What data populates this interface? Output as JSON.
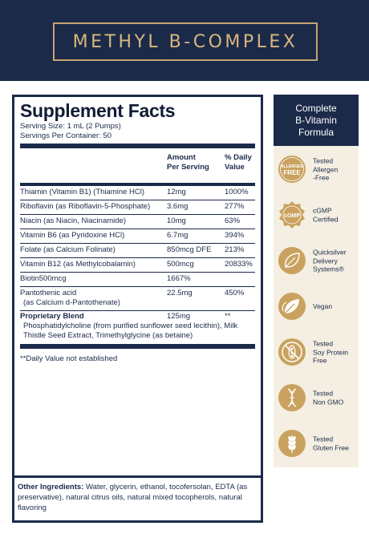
{
  "header": {
    "title": "METHYL B-COMPLEX"
  },
  "facts": {
    "title": "Supplement Facts",
    "serving_size": "Serving Size: 1 mL (2 Pumps)",
    "servings_per_container": "Servings Per Container: 50",
    "col_amount_line1": "Amount",
    "col_amount_line2": "Per Serving",
    "col_dv_line1": "% Daily",
    "col_dv_line2": "Value",
    "rows": [
      {
        "name": "Thiamin (Vitamin B1) (Thiamine HCl)",
        "amount": "12mg",
        "dv": "1000%"
      },
      {
        "name": "Riboflavin (as Riboflavin-5-Phosphate)",
        "amount": "3.6mg",
        "dv": "277%"
      },
      {
        "name": "Niacin (as Niacin, Niacinamide)",
        "amount": "10mg",
        "dv": "63%"
      },
      {
        "name": "Vitamin B6 (as Pyridoxine HCl)",
        "amount": "6.7mg",
        "dv": "394%"
      },
      {
        "name": "Folate  (as Calcium Folinate)",
        "amount": "850mcg DFE",
        "dv": "213%"
      },
      {
        "name": "Vitamin B12 (as Methylcobalamin)",
        "amount": "500mcg",
        "dv": "20833%"
      },
      {
        "name": "Biotin500mcg",
        "amount": "1667%",
        "dv": ""
      },
      {
        "name_line1": "Pantothenic acid",
        "name_line2": "(as Calcium d-Pantothenate)",
        "amount": "22.5mg",
        "dv": "450%"
      }
    ],
    "blend": {
      "name": "Proprietary Blend",
      "amount": "125mg",
      "dv": "**",
      "description": "Phosphatidylcholine (from purified sunflower seed lecithin), Milk Thistle Seed Extract, Trimethylglycine (as betaine)"
    },
    "footnote": "**Daily Value not established"
  },
  "other_ingredients": {
    "label": "Other Ingredients:",
    "text": " Water, glycerin, ethanol, tocofersolan, EDTA (as preservative), natural citrus oils, natural mixed tocopherols, natural flavoring"
  },
  "sidebar": {
    "heading_line1": "Complete",
    "heading_line2": "B-Vitamin",
    "heading_line3": "Formula",
    "badges": [
      {
        "icon": "allergen-free-icon",
        "icon_text_1": "ALLERGEN",
        "icon_text_2": "FREE",
        "line1": "Tested",
        "line2": "Allergen",
        "line3": "-Free"
      },
      {
        "icon": "cgmp-icon",
        "icon_text_1": "cGMP",
        "line1": "cGMP",
        "line2": "Certified"
      },
      {
        "icon": "delivery-leaf-icon",
        "line1": "Quicksilver",
        "line2": "Delivery",
        "line3": "Systems®"
      },
      {
        "icon": "vegan-leaf-icon",
        "line1": "Vegan"
      },
      {
        "icon": "no-soy-icon",
        "line1": "Tested",
        "line2": "Soy Protein",
        "line3": "Free"
      },
      {
        "icon": "non-gmo-dna-icon",
        "line1": "Tested",
        "line2": "Non GMO"
      },
      {
        "icon": "gluten-free-wheat-icon",
        "line1": "Tested",
        "line2": "Gluten Free"
      }
    ],
    "colors": {
      "badge_gold": "#c9a25f",
      "navy": "#1b2a49",
      "panel": "#f4efe2"
    }
  }
}
